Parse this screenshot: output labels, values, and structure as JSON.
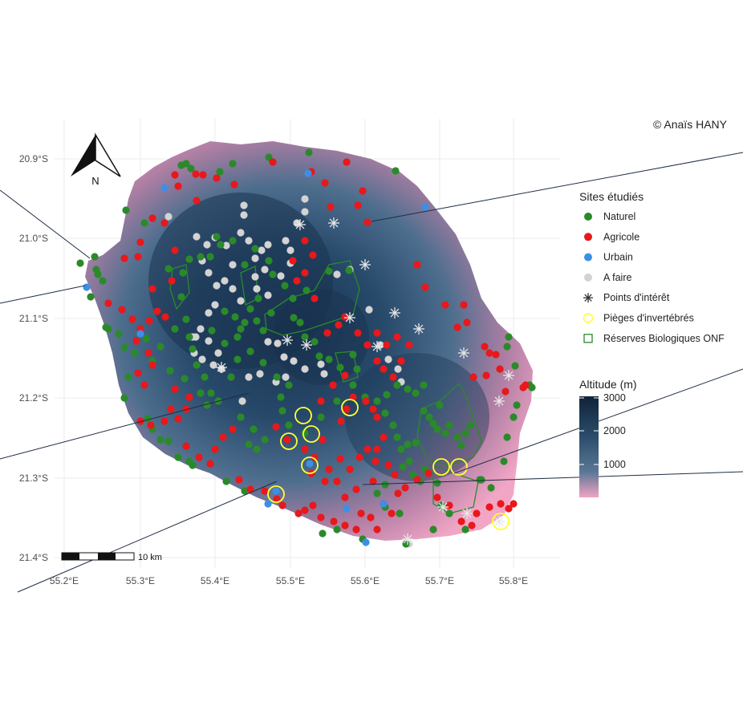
{
  "credit": "© Anaïs HANY",
  "north_arrow": {
    "label": "N"
  },
  "scale_bar": {
    "label": "10 km"
  },
  "axes": {
    "x_ticks": [
      "55.2°E",
      "55.3°E",
      "55.4°E",
      "55.5°E",
      "55.6°E",
      "55.7°E",
      "55.8°E"
    ],
    "y_ticks": [
      "20.9°S",
      "21.0°S",
      "21.1°S",
      "21.2°S",
      "21.3°S",
      "21.4°S"
    ]
  },
  "legend": {
    "sites_title": "Sites étudiés",
    "items": [
      {
        "label": "Naturel",
        "symbol": "dot",
        "color": "#2a8a2a"
      },
      {
        "label": "Agricole",
        "symbol": "dot",
        "color": "#e8181b"
      },
      {
        "label": "Urbain",
        "symbol": "dot",
        "color": "#3d8fe6"
      },
      {
        "label": "A faire",
        "symbol": "dot",
        "color": "#d3d3d3"
      },
      {
        "label": "Points d'intérêt",
        "symbol": "asterisk",
        "color": "#333333"
      },
      {
        "label": "Pièges d'invertébrés",
        "symbol": "ring",
        "color": "#ffff33"
      },
      {
        "label": "Réserves Biologiques ONF",
        "symbol": "square",
        "color": "#2a8a2a"
      }
    ],
    "altitude_title": "Altitude (m)",
    "altitude_ticks": [
      "3000",
      "2000",
      "1000"
    ],
    "altitude_colors": [
      "#0f2338",
      "#2b4d6b",
      "#5a7896",
      "#f2a3c3"
    ]
  },
  "colors": {
    "naturel": "#2a8a2a",
    "agricole": "#e8181b",
    "urbain": "#3d8fe6",
    "a_faire": "#d3d3d3",
    "trap": "#ffff33",
    "interest": "#e8e8e8"
  }
}
